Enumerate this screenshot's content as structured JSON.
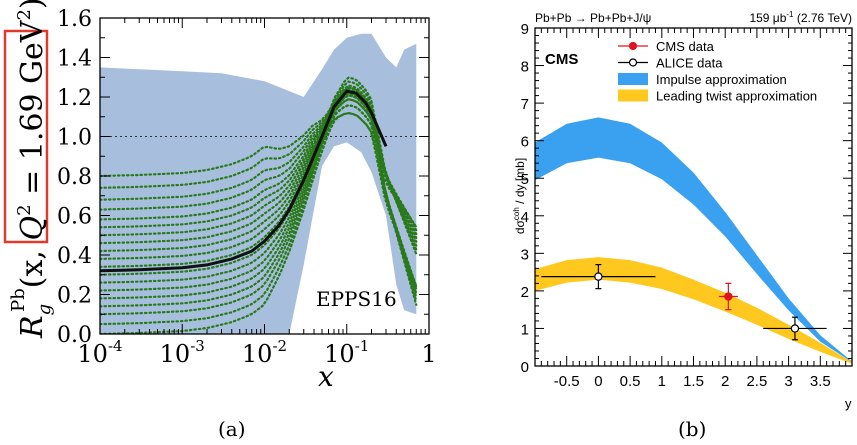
{
  "chart_data": [
    {
      "type": "line",
      "panel_label": "(a)",
      "xlabel": "x",
      "ylabel": "R_g^Pb(x, Q² = 1.69 GeV²)",
      "ylabel_parts": {
        "main": "R",
        "sub": "g",
        "sup": "Pb",
        "arg": "(x, ",
        "q": "Q",
        "q_sup": "2",
        "rest": " = 1.69 GeV",
        "rest_sup": "2",
        "close": ")"
      },
      "x_scale": "log",
      "xlim": [
        0.0001,
        1
      ],
      "ylim": [
        0.0,
        1.6
      ],
      "x_tick_labels": [
        {
          "value": 0.0001,
          "base": "10",
          "exp": "-4"
        },
        {
          "value": 0.001,
          "base": "10",
          "exp": "-3"
        },
        {
          "value": 0.01,
          "base": "10",
          "exp": "-2"
        },
        {
          "value": 0.1,
          "base": "10",
          "exp": "-1"
        },
        {
          "value": 1,
          "base": "1",
          "exp": ""
        }
      ],
      "y_ticks": [
        0.0,
        0.2,
        0.4,
        0.6,
        0.8,
        1.0,
        1.2,
        1.4,
        1.6
      ],
      "y_tick_labels": [
        "0.0",
        "0.2",
        "0.4",
        "0.6",
        "0.8",
        "1.0",
        "1.2",
        "1.4",
        "1.6"
      ],
      "reference_line": 1.0,
      "annotation": "EPPS16",
      "highlight_box": "red box around Q² label",
      "colors": {
        "band": "#a7bfdc",
        "central": "#111111",
        "variations": "#2a7a1c",
        "highlight": "#e03b2a"
      },
      "uncertainty_band": {
        "x": [
          0.0001,
          0.0003,
          0.001,
          0.003,
          0.01,
          0.02,
          0.03,
          0.05,
          0.07,
          0.1,
          0.15,
          0.2,
          0.3,
          0.4,
          0.5,
          0.7
        ],
        "upper": [
          1.35,
          1.34,
          1.33,
          1.32,
          1.28,
          1.23,
          1.2,
          1.34,
          1.44,
          1.5,
          1.52,
          1.52,
          1.4,
          1.35,
          1.44,
          1.47
        ],
        "lower": [
          0.0,
          0.0,
          0.0,
          0.0,
          0.0,
          0.0,
          0.35,
          0.85,
          0.95,
          0.97,
          0.92,
          0.82,
          0.6,
          0.25,
          0.12,
          0.1
        ]
      },
      "central_curve": {
        "x": [
          0.0001,
          0.0003,
          0.001,
          0.002,
          0.004,
          0.007,
          0.01,
          0.015,
          0.02,
          0.03,
          0.05,
          0.07,
          0.1,
          0.13,
          0.17,
          0.2,
          0.3
        ],
        "y": [
          0.32,
          0.325,
          0.335,
          0.35,
          0.38,
          0.42,
          0.47,
          0.55,
          0.63,
          0.78,
          1.0,
          1.15,
          1.23,
          1.22,
          1.17,
          1.12,
          0.95
        ]
      },
      "variation_sets": {
        "low_x_values": [
          0.0,
          0.05,
          0.1,
          0.14,
          0.18,
          0.22,
          0.26,
          0.3,
          0.34,
          0.38,
          0.42,
          0.46,
          0.5,
          0.54,
          0.58,
          0.63,
          0.68,
          0.74,
          0.8
        ],
        "peak_values": [
          1.12,
          1.16,
          1.19,
          1.21,
          1.22,
          1.23,
          1.24,
          1.25,
          1.26,
          1.28,
          1.3
        ]
      }
    },
    {
      "type": "line",
      "panel_label": "(b)",
      "header_left": "Pb+Pb → Pb+Pb+J/ψ",
      "header_right_value": "159 μb",
      "header_right_sup": "-1",
      "header_right_tail": " (2.76 TeV)",
      "experiment": "CMS",
      "xlabel": "y",
      "ylabel": "dσ^coh / dy [mb]",
      "ylabel_parts": {
        "a": "dσ",
        "sup": "coh",
        "b": " / dy [mb]"
      },
      "xlim": [
        -1.0,
        4.0
      ],
      "ylim": [
        0,
        9
      ],
      "x_ticks": [
        -0.5,
        0,
        0.5,
        1,
        1.5,
        2,
        2.5,
        3,
        3.5
      ],
      "x_tick_labels": [
        "-0.5",
        "0",
        "0.5",
        "1",
        "1.5",
        "2",
        "2.5",
        "3",
        "3.5"
      ],
      "y_ticks": [
        0,
        1,
        2,
        3,
        4,
        5,
        6,
        7,
        8,
        9
      ],
      "y_tick_labels": [
        "0",
        "1",
        "2",
        "3",
        "4",
        "5",
        "6",
        "7",
        "8",
        "9"
      ],
      "legend_position": "top-right",
      "legend": [
        {
          "label": "CMS data",
          "kind": "marker-filled",
          "color": "#e0141e"
        },
        {
          "label": "ALICE data",
          "kind": "marker-open",
          "color": "#000000"
        },
        {
          "label": "Impulse approximation",
          "kind": "band",
          "color": "#3aa0f0"
        },
        {
          "label": "Leading twist approximation",
          "kind": "band",
          "color": "#ffc81e"
        }
      ],
      "series": [
        {
          "name": "Impulse approximation",
          "type": "band",
          "color": "#3aa0f0",
          "x": [
            -1.0,
            -0.5,
            0.0,
            0.5,
            1.0,
            1.5,
            2.0,
            2.5,
            3.0,
            3.5,
            4.0
          ],
          "upper": [
            5.95,
            6.45,
            6.62,
            6.45,
            5.95,
            5.15,
            4.1,
            2.95,
            1.8,
            0.82,
            0.12
          ],
          "lower": [
            4.95,
            5.4,
            5.55,
            5.4,
            4.97,
            4.3,
            3.45,
            2.45,
            1.48,
            0.65,
            0.1
          ]
        },
        {
          "name": "Leading twist approximation",
          "type": "band",
          "color": "#ffc81e",
          "x": [
            -1.0,
            -0.5,
            0.0,
            0.5,
            1.0,
            1.5,
            2.0,
            2.5,
            3.0,
            3.5,
            4.0
          ],
          "upper": [
            2.58,
            2.82,
            2.9,
            2.82,
            2.62,
            2.3,
            1.95,
            1.55,
            1.1,
            0.62,
            0.1
          ],
          "lower": [
            2.0,
            2.22,
            2.3,
            2.22,
            2.05,
            1.78,
            1.45,
            1.1,
            0.72,
            0.38,
            0.06
          ]
        },
        {
          "name": "CMS data",
          "type": "points",
          "color": "#e0141e",
          "points": [
            {
              "x": 2.05,
              "y": 1.85,
              "xerr": 0.15,
              "yerr": 0.35
            }
          ]
        },
        {
          "name": "ALICE data",
          "type": "points",
          "color": "#000000",
          "points": [
            {
              "x": 0.0,
              "y": 2.38,
              "xerr": 0.9,
              "yerr": 0.32
            },
            {
              "x": 3.1,
              "y": 1.0,
              "xerr": 0.5,
              "yerr": 0.3
            }
          ]
        }
      ]
    }
  ]
}
